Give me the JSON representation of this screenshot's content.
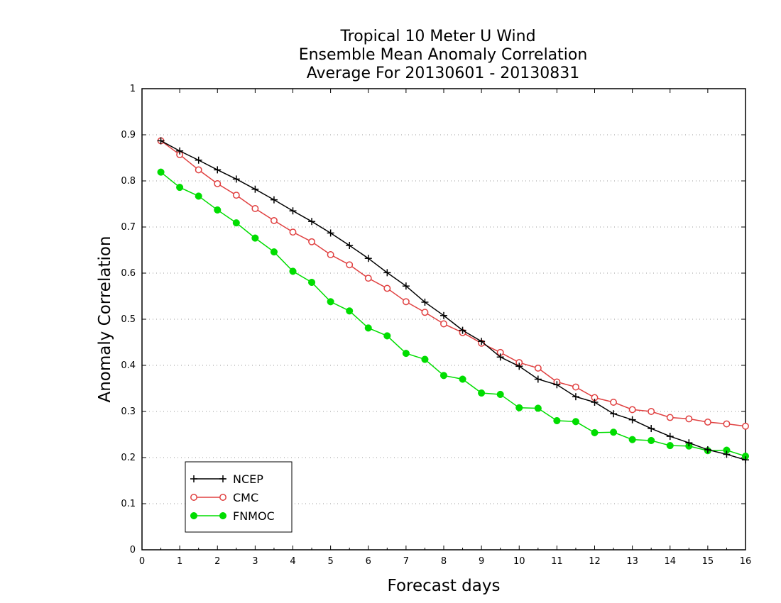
{
  "chart_data": {
    "type": "line",
    "title_lines": [
      "Tropical 10 Meter U Wind",
      "Ensemble Mean Anomaly Correlation",
      "Average For 20130601 - 20130831"
    ],
    "xlabel": "Forecast days",
    "ylabel": "Anomaly Correlation",
    "xlim": [
      0,
      16
    ],
    "ylim": [
      0,
      1
    ],
    "xticks": [
      "0",
      "1",
      "2",
      "3",
      "4",
      "5",
      "6",
      "7",
      "8",
      "9",
      "10",
      "11",
      "12",
      "13",
      "14",
      "15",
      "16"
    ],
    "yticks": [
      "0",
      "0.1",
      "0.2",
      "0.3",
      "0.4",
      "0.5",
      "0.6",
      "0.7",
      "0.8",
      "0.9",
      "1"
    ],
    "grid": "horizontal dotted",
    "legend_position": "bottom-left",
    "x": [
      0.5,
      1,
      1.5,
      2,
      2.5,
      3,
      3.5,
      4,
      4.5,
      5,
      5.5,
      6,
      6.5,
      7,
      7.5,
      8,
      8.5,
      9,
      9.5,
      10,
      10.5,
      11,
      11.5,
      12,
      12.5,
      13,
      13.5,
      14,
      14.5,
      15,
      15.5,
      16
    ],
    "series": [
      {
        "name": "NCEP",
        "color": "#000000",
        "marker": "plus",
        "values": [
          0.887,
          0.865,
          0.845,
          0.824,
          0.804,
          0.782,
          0.759,
          0.735,
          0.712,
          0.687,
          0.66,
          0.632,
          0.601,
          0.572,
          0.537,
          0.508,
          0.476,
          0.452,
          0.418,
          0.398,
          0.37,
          0.358,
          0.332,
          0.32,
          0.295,
          0.282,
          0.263,
          0.246,
          0.232,
          0.217,
          0.207,
          0.195
        ]
      },
      {
        "name": "CMC",
        "color": "#e04040",
        "marker": "open-circle",
        "values": [
          0.887,
          0.857,
          0.824,
          0.794,
          0.769,
          0.74,
          0.714,
          0.689,
          0.668,
          0.64,
          0.618,
          0.589,
          0.567,
          0.538,
          0.515,
          0.49,
          0.471,
          0.448,
          0.428,
          0.406,
          0.394,
          0.364,
          0.353,
          0.33,
          0.32,
          0.304,
          0.3,
          0.287,
          0.284,
          0.277,
          0.273,
          0.268
        ]
      },
      {
        "name": "FNMOC",
        "color": "#00dd00",
        "marker": "filled-circle",
        "values": [
          0.819,
          0.786,
          0.767,
          0.737,
          0.709,
          0.676,
          0.646,
          0.604,
          0.58,
          0.538,
          0.518,
          0.481,
          0.464,
          0.426,
          0.413,
          0.378,
          0.37,
          0.34,
          0.337,
          0.308,
          0.307,
          0.28,
          0.278,
          0.254,
          0.255,
          0.239,
          0.237,
          0.226,
          0.225,
          0.215,
          0.216,
          0.203
        ]
      }
    ]
  }
}
